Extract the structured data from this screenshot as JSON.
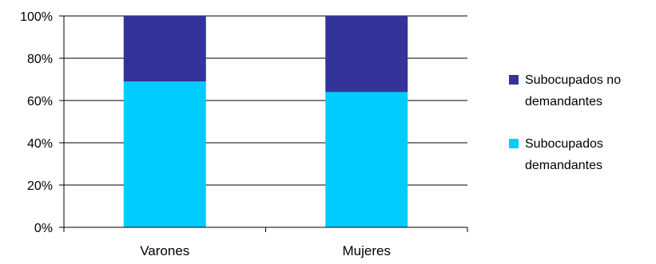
{
  "chart_data": {
    "type": "bar",
    "stacked": true,
    "percent": true,
    "categories": [
      "Varones",
      "Mujeres"
    ],
    "series": [
      {
        "name": "Subocupados demandantes",
        "values": [
          69,
          64
        ],
        "color": "#00CCFF"
      },
      {
        "name": "Subocupados no demandantes",
        "values": [
          31,
          36
        ],
        "color": "#333399"
      }
    ],
    "ylim": [
      0,
      100
    ],
    "yticks": [
      "0%",
      "20%",
      "40%",
      "60%",
      "80%",
      "100%"
    ],
    "grid": true,
    "legend_position": "right",
    "legend": [
      {
        "series": 1,
        "lines": [
          "Subocupados no",
          "demandantes"
        ]
      },
      {
        "series": 0,
        "lines": [
          "Subocupados",
          "demandantes"
        ]
      }
    ]
  }
}
